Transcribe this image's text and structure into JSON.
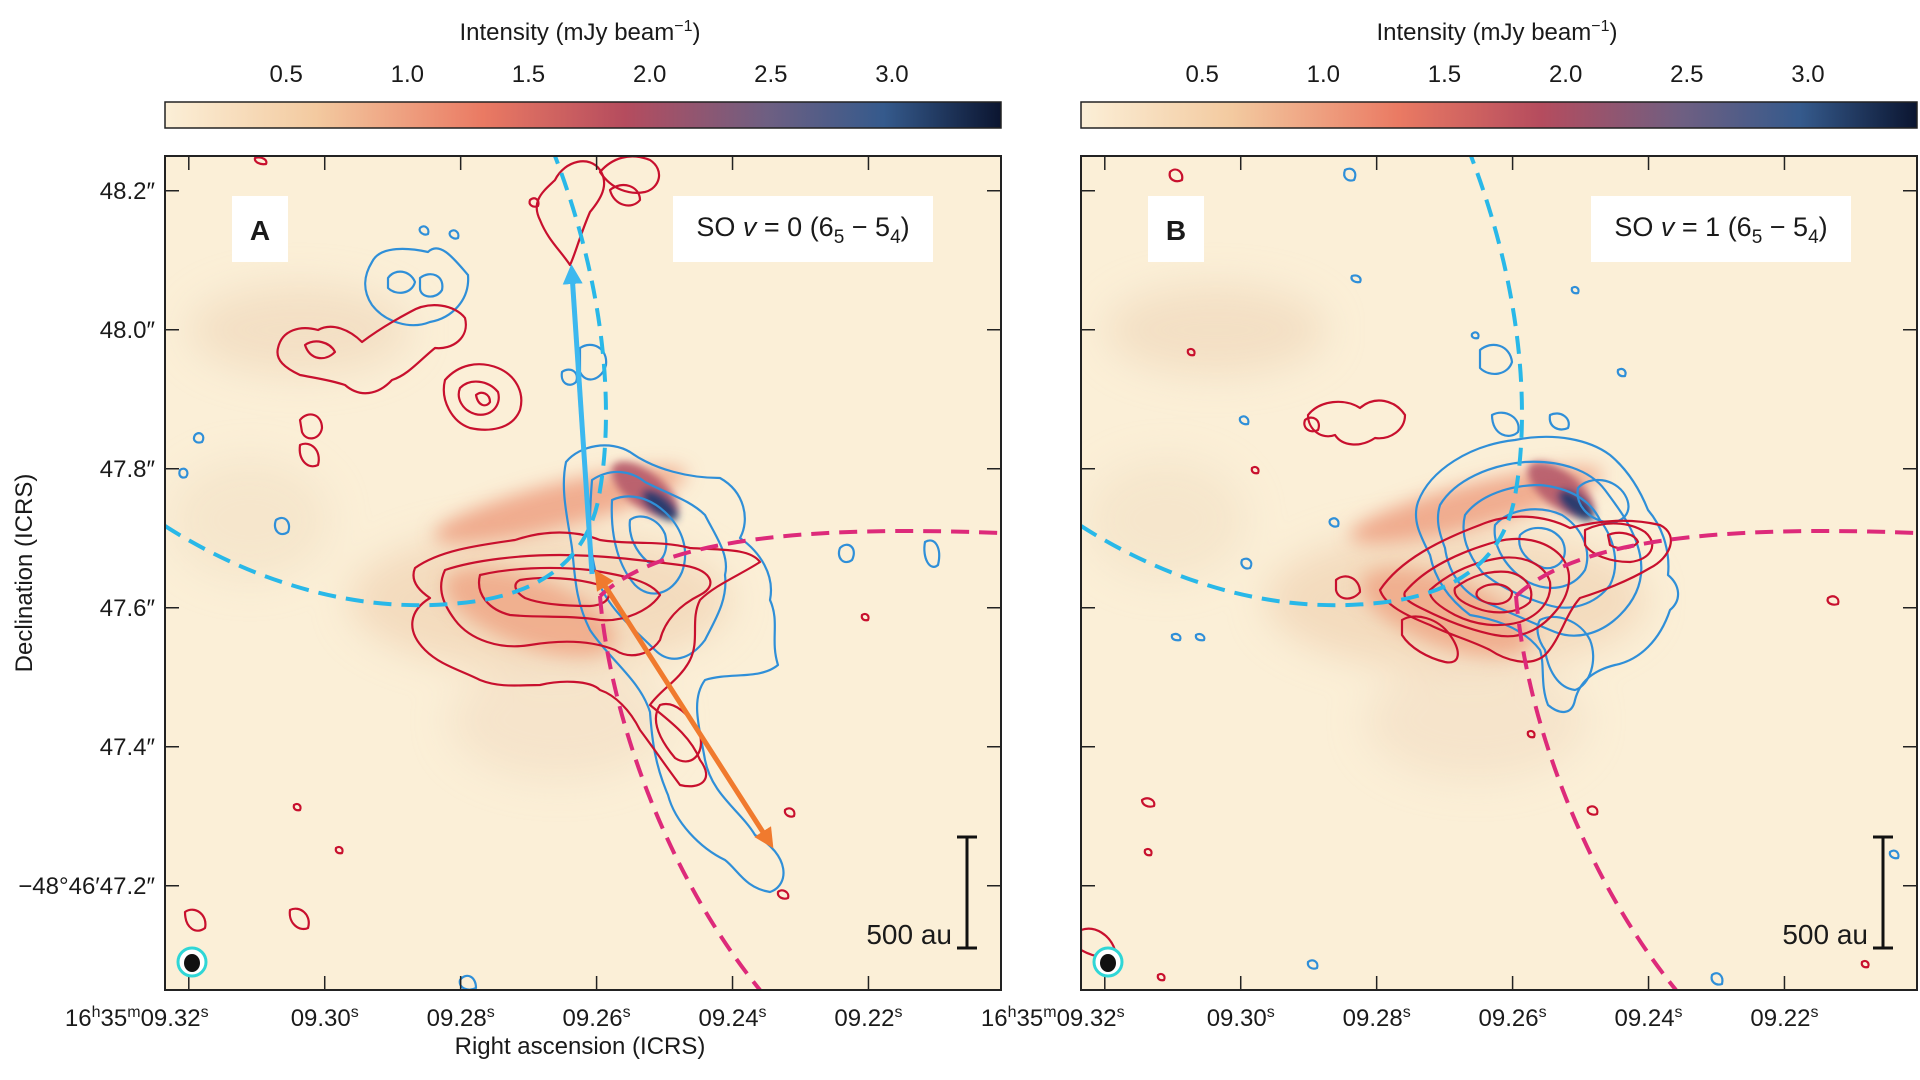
{
  "chart_data": [
    {
      "type": "heatmap",
      "panel_label": "A",
      "line_label": {
        "species": "SO",
        "v_prefix": "v",
        "v_value": "= 0",
        "transition_open": "(6",
        "upper_sub": "5",
        "dash": " − 5",
        "lower_sub": "4",
        "transition_close": ")"
      },
      "colorbar": {
        "label_main": "Intensity (mJy beam",
        "label_sup": "−1",
        "label_close": ")",
        "ticks": [
          "0.5",
          "1.0",
          "1.5",
          "2.0",
          "2.5",
          "3.0"
        ],
        "tick_values": [
          0.5,
          1.0,
          1.5,
          2.0,
          2.5,
          3.0
        ],
        "range": [
          0.0,
          3.45
        ]
      },
      "xlabel": "Right ascension (ICRS)",
      "ylabel": "Declination (ICRS)",
      "x_ticks": [
        {
          "value": 9.32,
          "h": "16",
          "h_unit": "h",
          "m": "35",
          "m_unit": "m",
          "s": "09.32",
          "s_unit": "s"
        },
        {
          "value": 9.3,
          "s": "09.30",
          "s_unit": "s"
        },
        {
          "value": 9.28,
          "s": "09.28",
          "s_unit": "s"
        },
        {
          "value": 9.26,
          "s": "09.26",
          "s_unit": "s"
        },
        {
          "value": 9.24,
          "s": "09.24",
          "s_unit": "s"
        },
        {
          "value": 9.22,
          "s": "09.22",
          "s_unit": "s"
        }
      ],
      "y_ticks": [
        {
          "value": 47.2,
          "label": "−48°46′47.2″"
        },
        {
          "value": 47.4,
          "label": "47.4″"
        },
        {
          "value": 47.6,
          "label": "47.6″"
        },
        {
          "value": 47.8,
          "label": "47.8″"
        },
        {
          "value": 48.0,
          "label": "48.0″"
        },
        {
          "value": 48.2,
          "label": "48.2″"
        }
      ],
      "xlim_seconds": [
        9.3235,
        9.2005
      ],
      "ylim_arcsec": [
        48.25,
        47.05
      ],
      "scalebar": {
        "label": "500 au",
        "size_arcsec": 0.16
      },
      "colors": {
        "red_contour": "#c8102e",
        "blue_contour": "#2f8fd8",
        "dashed_blue": "#29b8e8",
        "dashed_magenta": "#dd2a7a",
        "arrow_blue": "#3cb8ef",
        "arrow_orange": "#f07a2e"
      }
    },
    {
      "type": "heatmap",
      "panel_label": "B",
      "line_label": {
        "species": "SO",
        "v_prefix": "v",
        "v_value": "= 1",
        "transition_open": "(6",
        "upper_sub": "5",
        "dash": " − 5",
        "lower_sub": "4",
        "transition_close": ")"
      },
      "colorbar": {
        "label_main": "Intensity (mJy beam",
        "label_sup": "−1",
        "label_close": ")",
        "ticks": [
          "0.5",
          "1.0",
          "1.5",
          "2.0",
          "2.5",
          "3.0"
        ],
        "tick_values": [
          0.5,
          1.0,
          1.5,
          2.0,
          2.5,
          3.0
        ],
        "range": [
          0.0,
          3.45
        ]
      },
      "x_ticks": [
        {
          "value": 9.32,
          "h": "16",
          "h_unit": "h",
          "m": "35",
          "m_unit": "m",
          "s": "09.32",
          "s_unit": "s"
        },
        {
          "value": 9.3,
          "s": "09.30",
          "s_unit": "s"
        },
        {
          "value": 9.28,
          "s": "09.28",
          "s_unit": "s"
        },
        {
          "value": 9.26,
          "s": "09.26",
          "s_unit": "s"
        },
        {
          "value": 9.24,
          "s": "09.24",
          "s_unit": "s"
        },
        {
          "value": 9.22,
          "s": "09.22",
          "s_unit": "s"
        }
      ],
      "xlim_seconds": [
        9.3235,
        9.2005
      ],
      "ylim_arcsec": [
        48.25,
        47.05
      ],
      "scalebar": {
        "label": "500 au",
        "size_arcsec": 0.16
      },
      "colors": {
        "red_contour": "#c8102e",
        "blue_contour": "#2f8fd8",
        "dashed_blue": "#29b8e8",
        "dashed_magenta": "#dd2a7a"
      }
    }
  ]
}
